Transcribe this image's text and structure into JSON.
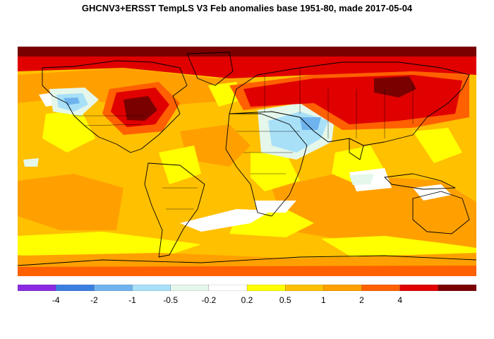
{
  "title": "GHCNV3+ERSST TempLS V3 Feb anomalies base 1951-80, made 2017-05-04",
  "legend": {
    "colors": [
      "#8a2be2",
      "#3a7fe0",
      "#6fb3ee",
      "#a8e0f8",
      "#e4f7ea",
      "#ffffff",
      "#ffff00",
      "#ffc000",
      "#ffa000",
      "#ff6000",
      "#e00000",
      "#7a0000"
    ],
    "ticks": [
      "-4",
      "-2",
      "-1",
      "-0.5",
      "-0.2",
      "0.2",
      "0.5",
      "1",
      "2",
      "4"
    ]
  }
}
